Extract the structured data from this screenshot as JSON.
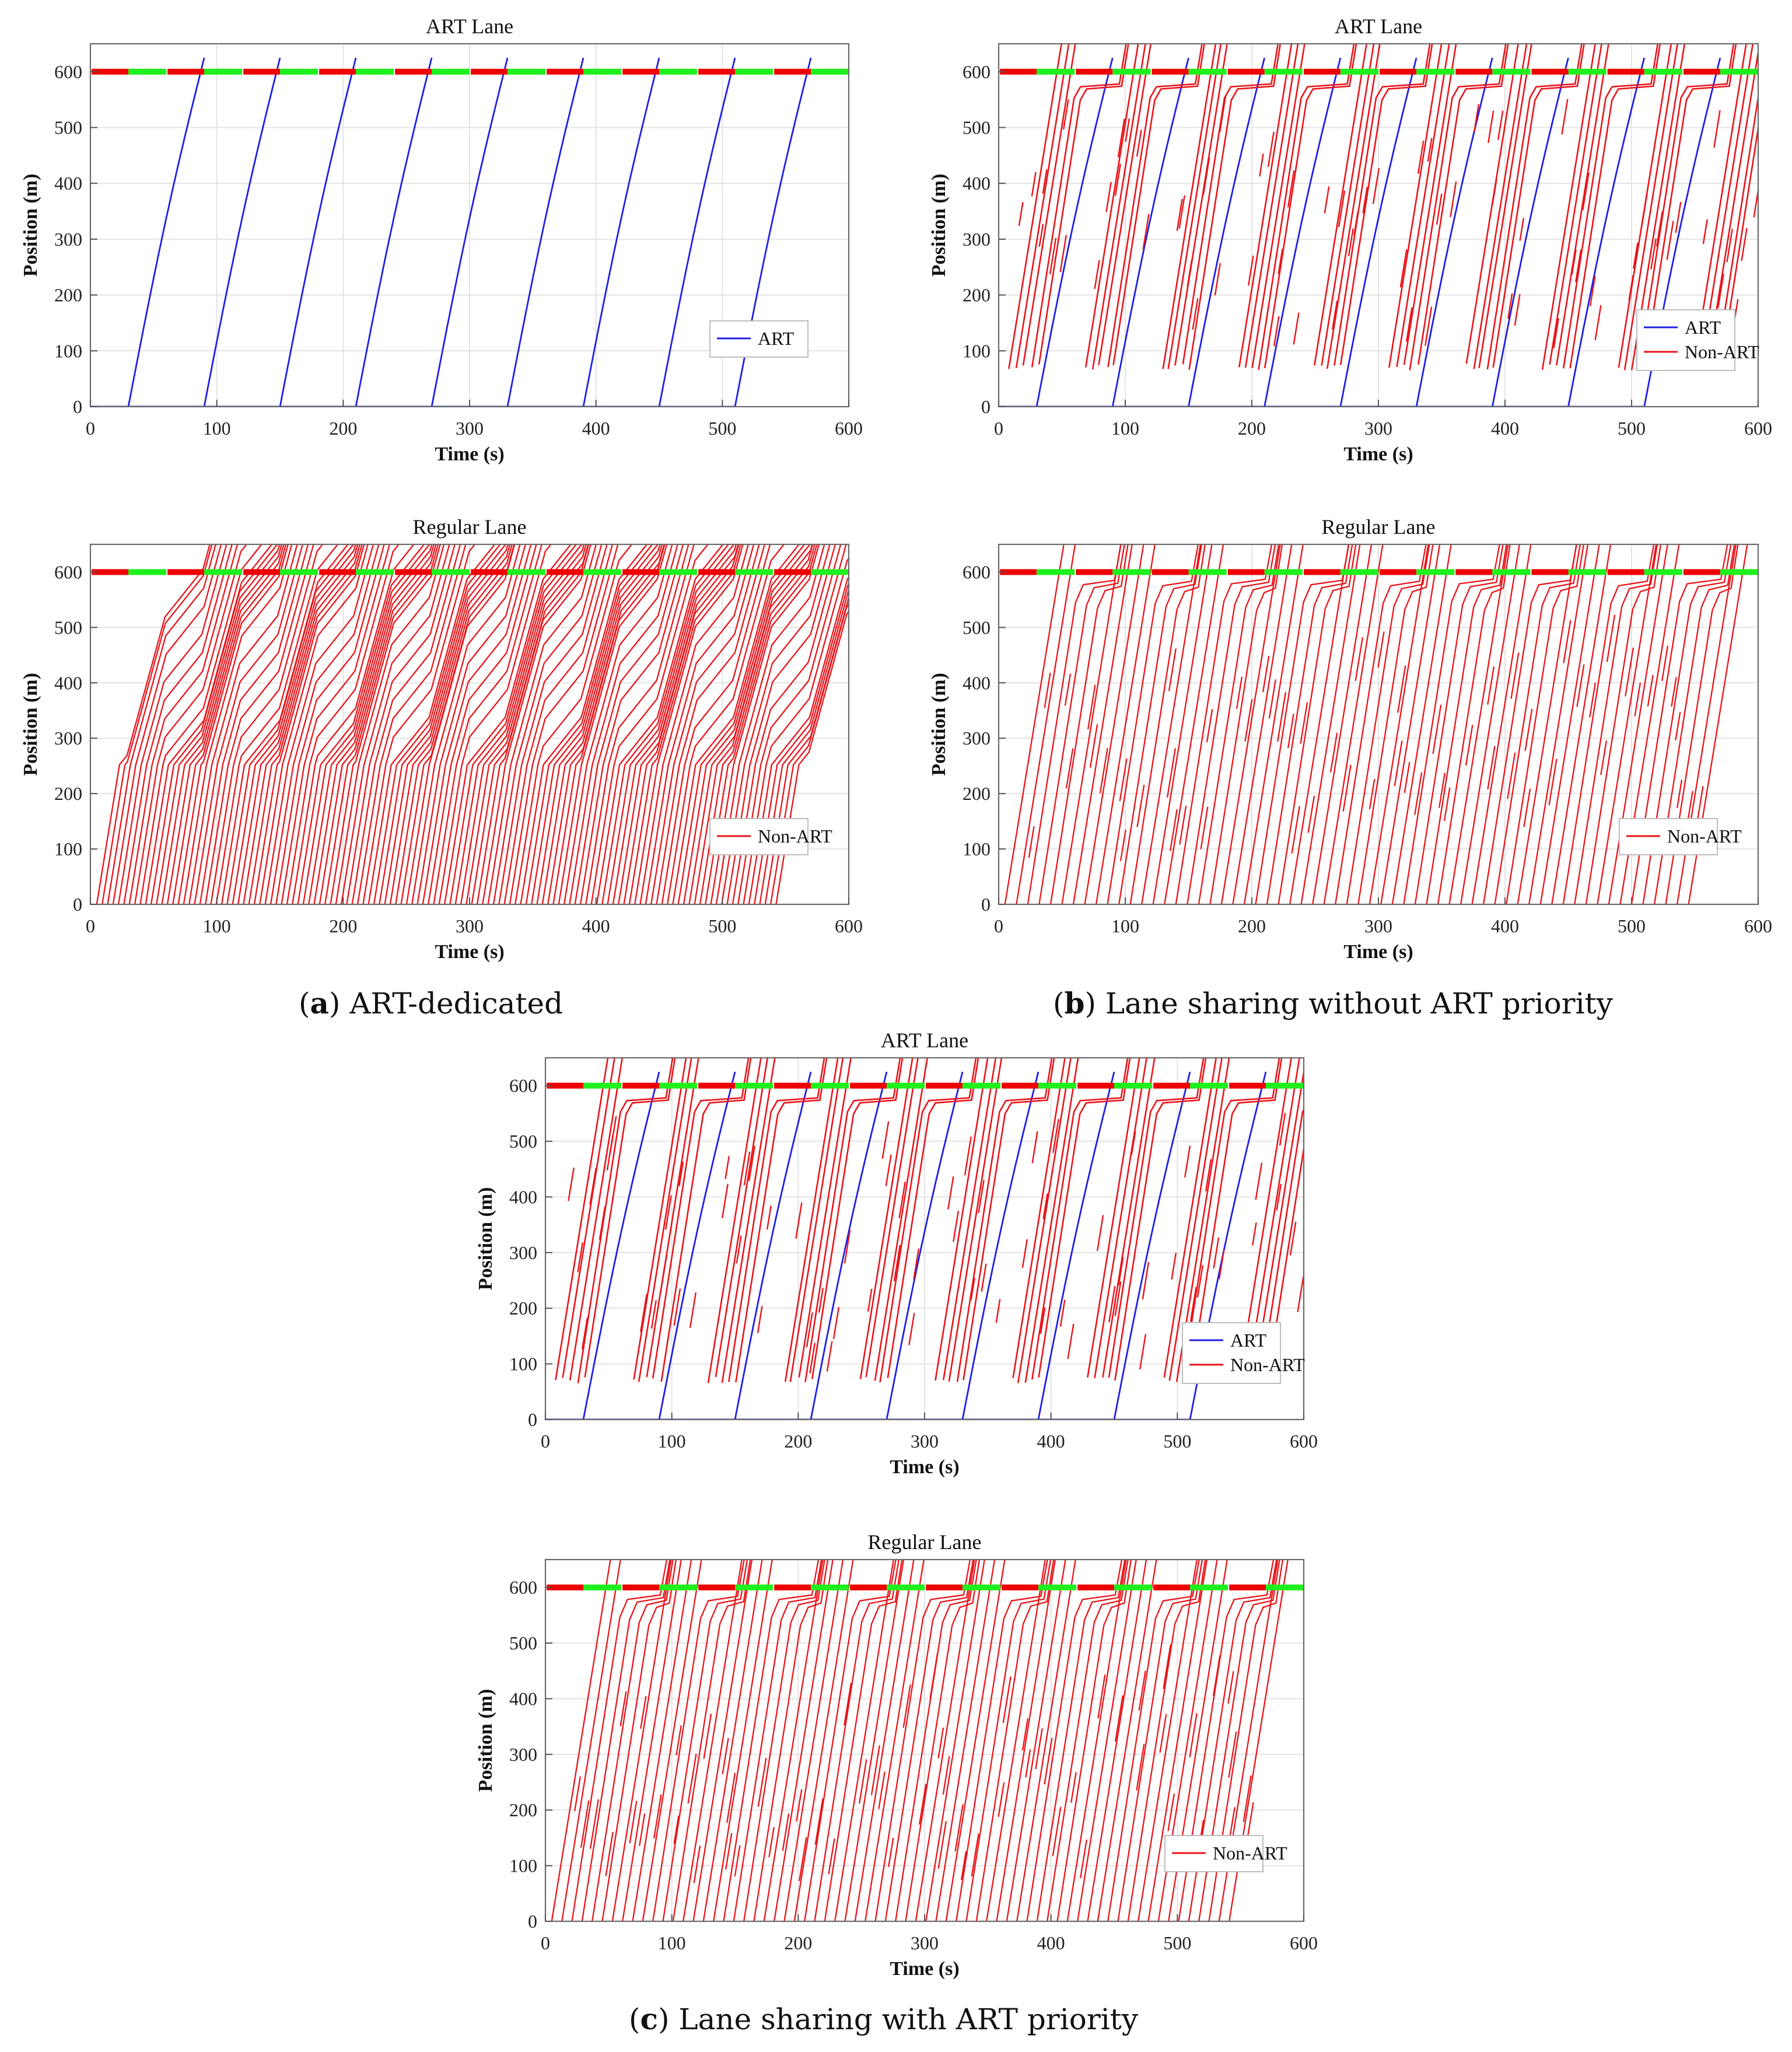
{
  "figure": {
    "captions": [
      {
        "letter": "a",
        "text": " ART-dedicated"
      },
      {
        "letter": "b",
        "text": " Lane sharing without ART priority"
      },
      {
        "letter": "c",
        "text": " Lane sharing with ART priority"
      }
    ]
  },
  "colors": {
    "art": "#1f1fe6",
    "non_art": "#e8141a",
    "signal_red": "#ee0000",
    "signal_green": "#1ef01e",
    "grid": "#e4e4e4"
  },
  "chart_data": [
    {
      "id": "a-art",
      "type": "line",
      "title": "ART Lane",
      "xlabel": "Time (s)",
      "ylabel": "Position (m)",
      "xlim": [
        0,
        600
      ],
      "ylim": [
        0,
        650
      ],
      "grid": true,
      "xticks": [
        "0",
        "100",
        "200",
        "300",
        "400",
        "500",
        "600"
      ],
      "yticks": [
        "0",
        "100",
        "200",
        "300",
        "400",
        "500",
        "600"
      ],
      "signal": {
        "position_m": 600,
        "cycle_s": 60,
        "red_s": 30,
        "green_s": 30,
        "start": "red"
      },
      "legend": {
        "location": "bottom-right",
        "entries": [
          {
            "label": "ART",
            "color": "art"
          }
        ]
      },
      "series": [
        {
          "name": "ART",
          "kind": "art",
          "depart_times_s": [
            30,
            90,
            150,
            210,
            270,
            330,
            390,
            450,
            510
          ]
        }
      ]
    },
    {
      "id": "b-art",
      "type": "line",
      "title": "ART Lane",
      "xlabel": "Time (s)",
      "ylabel": "Position (m)",
      "xlim": [
        0,
        600
      ],
      "ylim": [
        0,
        650
      ],
      "grid": true,
      "xticks": [
        "0",
        "100",
        "200",
        "300",
        "400",
        "500",
        "600"
      ],
      "yticks": [
        "0",
        "100",
        "200",
        "300",
        "400",
        "500",
        "600"
      ],
      "signal": {
        "position_m": 600,
        "cycle_s": 60,
        "red_s": 30,
        "green_s": 30,
        "start": "red"
      },
      "legend": {
        "location": "bottom-right",
        "entries": [
          {
            "label": "ART",
            "color": "art"
          },
          {
            "label": "Non-ART",
            "color": "non_art"
          }
        ]
      },
      "series": [
        {
          "name": "ART",
          "kind": "art",
          "depart_times_s": [
            30,
            90,
            150,
            210,
            270,
            330,
            390,
            450,
            510
          ]
        },
        {
          "name": "Non-ART",
          "kind": "non_art",
          "vehicles_per_cycle": 5,
          "entry_position_m": 65
        }
      ]
    },
    {
      "id": "a-regular",
      "type": "line",
      "title": "Regular Lane",
      "xlabel": "Time (s)",
      "ylabel": "Position (m)",
      "xlim": [
        0,
        600
      ],
      "ylim": [
        0,
        650
      ],
      "grid": true,
      "xticks": [
        "0",
        "100",
        "200",
        "300",
        "400",
        "500",
        "600"
      ],
      "yticks": [
        "0",
        "100",
        "200",
        "300",
        "400",
        "500",
        "600"
      ],
      "signal": {
        "position_m": 600,
        "cycle_s": 60,
        "red_s": 30,
        "green_s": 30,
        "start": "red"
      },
      "legend": {
        "location": "bottom-right",
        "entries": [
          {
            "label": "Non-ART",
            "color": "non_art"
          }
        ]
      },
      "series": [
        {
          "name": "Non-ART",
          "kind": "dense",
          "first_depart_s": 5,
          "last_depart_s": 545,
          "headway_s": 4.3
        }
      ]
    },
    {
      "id": "b-regular",
      "type": "line",
      "title": "Regular Lane",
      "xlabel": "Time (s)",
      "ylabel": "Position (m)",
      "xlim": [
        0,
        600
      ],
      "ylim": [
        0,
        650
      ],
      "grid": true,
      "xticks": [
        "0",
        "100",
        "200",
        "300",
        "400",
        "500",
        "600"
      ],
      "yticks": [
        "0",
        "100",
        "200",
        "300",
        "400",
        "500",
        "600"
      ],
      "signal": {
        "position_m": 600,
        "cycle_s": 60,
        "red_s": 30,
        "green_s": 30,
        "start": "red"
      },
      "legend": {
        "location": "bottom-right",
        "entries": [
          {
            "label": "Non-ART",
            "color": "non_art"
          }
        ]
      },
      "series": [
        {
          "name": "Non-ART",
          "kind": "mixed",
          "first_depart_s": 5,
          "last_depart_s": 550,
          "headway_s": 9
        }
      ]
    },
    {
      "id": "c-art",
      "type": "line",
      "title": "ART Lane",
      "xlabel": "Time (s)",
      "ylabel": "Position (m)",
      "xlim": [
        0,
        600
      ],
      "ylim": [
        0,
        650
      ],
      "grid": true,
      "xticks": [
        "0",
        "100",
        "200",
        "300",
        "400",
        "500",
        "600"
      ],
      "yticks": [
        "0",
        "100",
        "200",
        "300",
        "400",
        "500",
        "600"
      ],
      "signal": {
        "position_m": 600,
        "cycle_s": 60,
        "red_s": 30,
        "green_s": 30,
        "start": "red"
      },
      "legend": {
        "location": "bottom-right",
        "entries": [
          {
            "label": "ART",
            "color": "art"
          },
          {
            "label": "Non-ART",
            "color": "non_art"
          }
        ]
      },
      "series": [
        {
          "name": "ART",
          "kind": "art",
          "depart_times_s": [
            30,
            90,
            150,
            210,
            270,
            330,
            390,
            450,
            510
          ]
        },
        {
          "name": "Non-ART",
          "kind": "non_art",
          "vehicles_per_cycle": 5,
          "entry_position_m": 65
        }
      ]
    },
    {
      "id": "c-regular",
      "type": "line",
      "title": "Regular Lane",
      "xlabel": "Time (s)",
      "ylabel": "Position (m)",
      "xlim": [
        0,
        600
      ],
      "ylim": [
        0,
        650
      ],
      "grid": true,
      "xticks": [
        "0",
        "100",
        "200",
        "300",
        "400",
        "500",
        "600"
      ],
      "yticks": [
        "0",
        "100",
        "200",
        "300",
        "400",
        "500",
        "600"
      ],
      "signal": {
        "position_m": 600,
        "cycle_s": 60,
        "red_s": 30,
        "green_s": 30,
        "start": "red"
      },
      "legend": {
        "location": "bottom-right",
        "entries": [
          {
            "label": "Non-ART",
            "color": "non_art"
          }
        ]
      },
      "series": [
        {
          "name": "Non-ART",
          "kind": "mixed",
          "first_depart_s": 5,
          "last_depart_s": 548,
          "headway_s": 8
        }
      ]
    }
  ]
}
